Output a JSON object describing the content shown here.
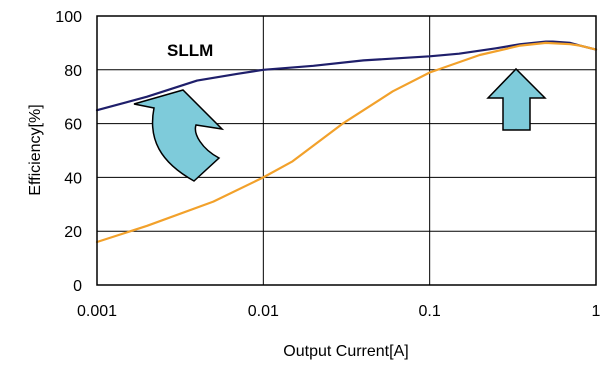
{
  "chart_data": {
    "type": "line",
    "xlabel": "Output Current[A]",
    "ylabel": "Efficiency[%]",
    "x_scale": "log",
    "xlim": [
      0.001,
      1
    ],
    "ylim": [
      0,
      100
    ],
    "x_ticks": [
      {
        "value": 0.001,
        "label": "0.001"
      },
      {
        "value": 0.01,
        "label": "0.01"
      },
      {
        "value": 0.1,
        "label": "0.1"
      },
      {
        "value": 1,
        "label": "1"
      }
    ],
    "y_ticks": [
      {
        "value": 0,
        "label": "0"
      },
      {
        "value": 20,
        "label": "20"
      },
      {
        "value": 40,
        "label": "40"
      },
      {
        "value": 60,
        "label": "60"
      },
      {
        "value": 80,
        "label": "80"
      },
      {
        "value": 100,
        "label": "100"
      }
    ],
    "grid": true,
    "series": [
      {
        "name": "SLLM",
        "color": "#1f1f6b",
        "x": [
          0.001,
          0.002,
          0.004,
          0.007,
          0.01,
          0.02,
          0.04,
          0.1,
          0.15,
          0.25,
          0.35,
          0.5,
          0.55,
          0.7,
          0.8,
          1.0
        ],
        "y": [
          65,
          70,
          76,
          78.5,
          80,
          81.5,
          83.5,
          85,
          86,
          88,
          89.5,
          90.5,
          90.5,
          90,
          89,
          87.5
        ]
      },
      {
        "color": "#f2a12b",
        "x": [
          0.001,
          0.002,
          0.005,
          0.01,
          0.015,
          0.03,
          0.06,
          0.1,
          0.2,
          0.35,
          0.5,
          0.7,
          0.8,
          1.0
        ],
        "y": [
          16,
          22,
          31,
          40,
          46,
          60,
          72,
          79,
          85.5,
          89,
          90,
          89.5,
          89,
          87.5
        ]
      }
    ],
    "annotations": [
      {
        "type": "text",
        "text": "SLLM",
        "series": "SLLM"
      },
      {
        "type": "arrow",
        "style": "curved-up",
        "fill": "#7ecbda"
      },
      {
        "type": "arrow",
        "style": "straight-up",
        "fill": "#7ecbda"
      }
    ]
  }
}
